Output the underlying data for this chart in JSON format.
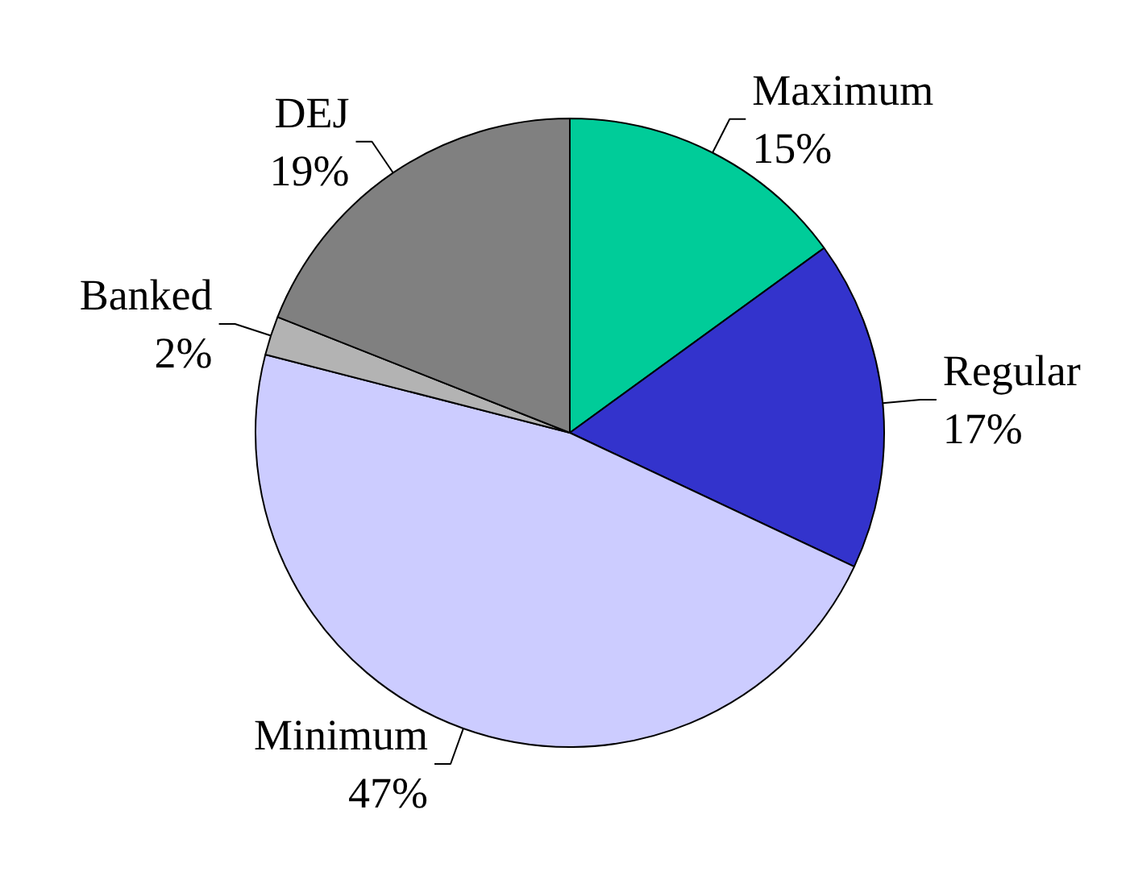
{
  "chart_data": {
    "type": "pie",
    "categories": [
      "Maximum",
      "Regular",
      "Minimum",
      "Banked",
      "DEJ"
    ],
    "values": [
      15,
      17,
      47,
      2,
      19
    ],
    "value_labels": [
      "15%",
      "17%",
      "47%",
      "2%",
      "19%"
    ],
    "colors": [
      "#00cc99",
      "#3333cc",
      "#ccccff",
      "#b3b3b3",
      "#808080"
    ]
  }
}
